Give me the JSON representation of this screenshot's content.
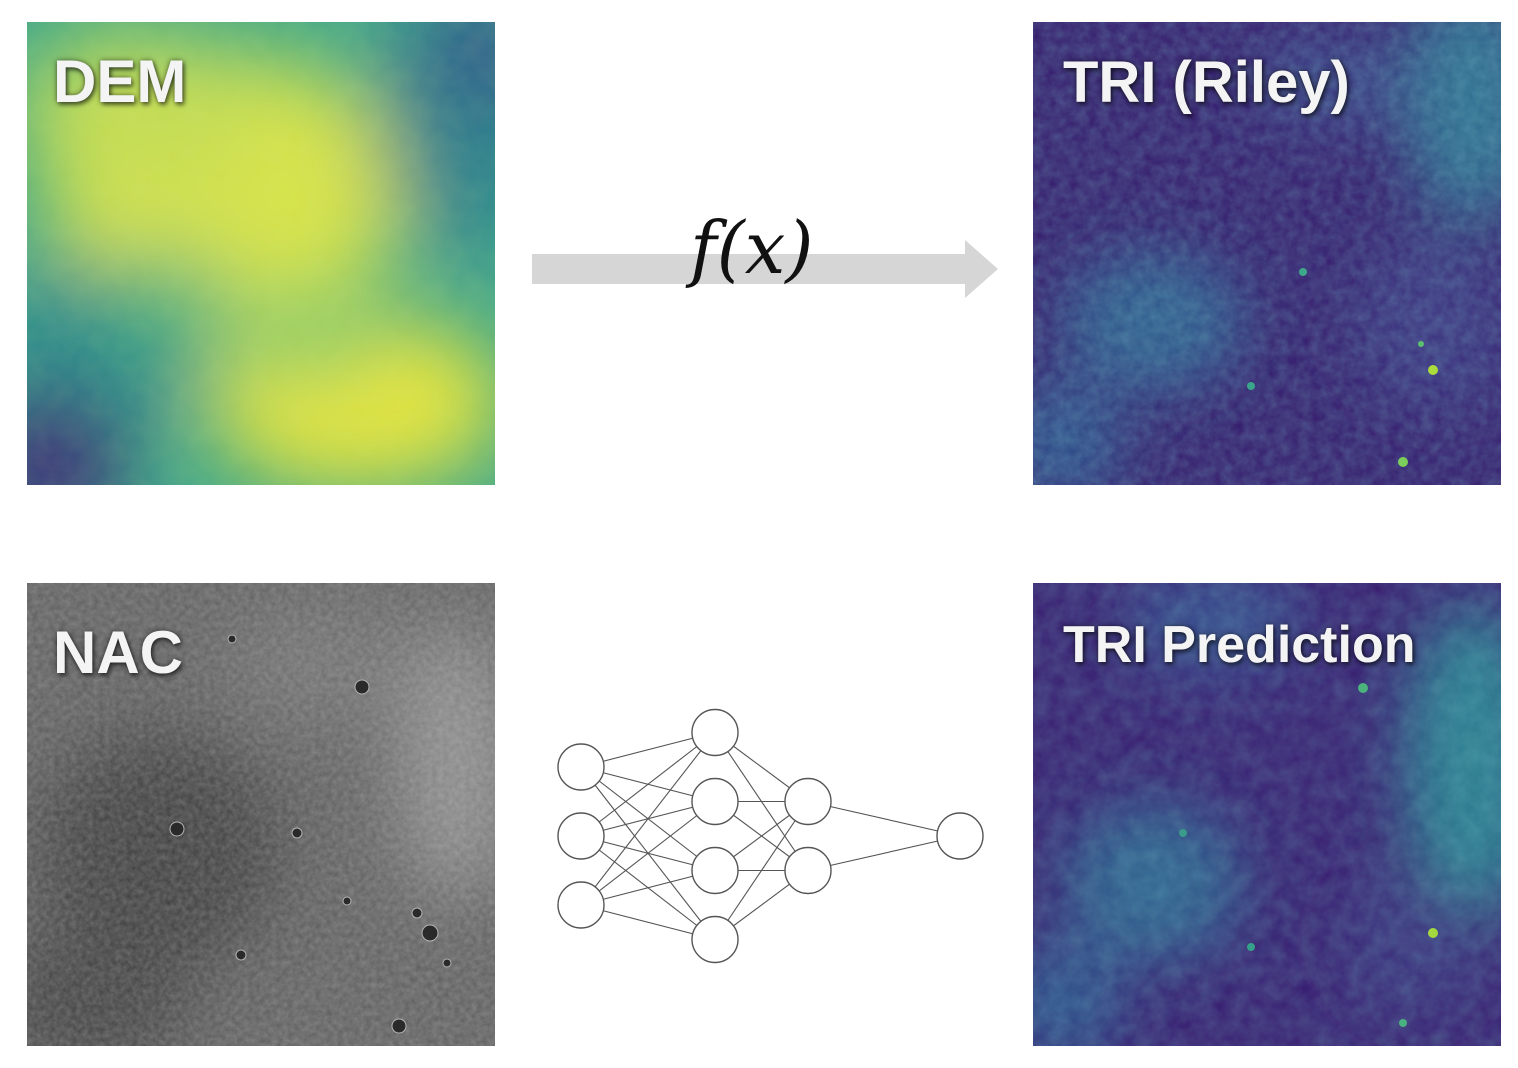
{
  "panels": {
    "dem": {
      "label": "DEM",
      "colormap": "viridis"
    },
    "nac": {
      "label": "NAC",
      "colormap": "gray"
    },
    "tri_riley": {
      "label": "TRI (Riley)",
      "colormap": "viridis"
    },
    "tri_prediction": {
      "label": "TRI Prediction",
      "colormap": "viridis"
    }
  },
  "arrow": {
    "label": "f(x)",
    "color": "#d6d6d6"
  },
  "network": {
    "layers": [
      3,
      4,
      2,
      1
    ],
    "node_color": "#ffffff",
    "edge_color": "#555555"
  }
}
